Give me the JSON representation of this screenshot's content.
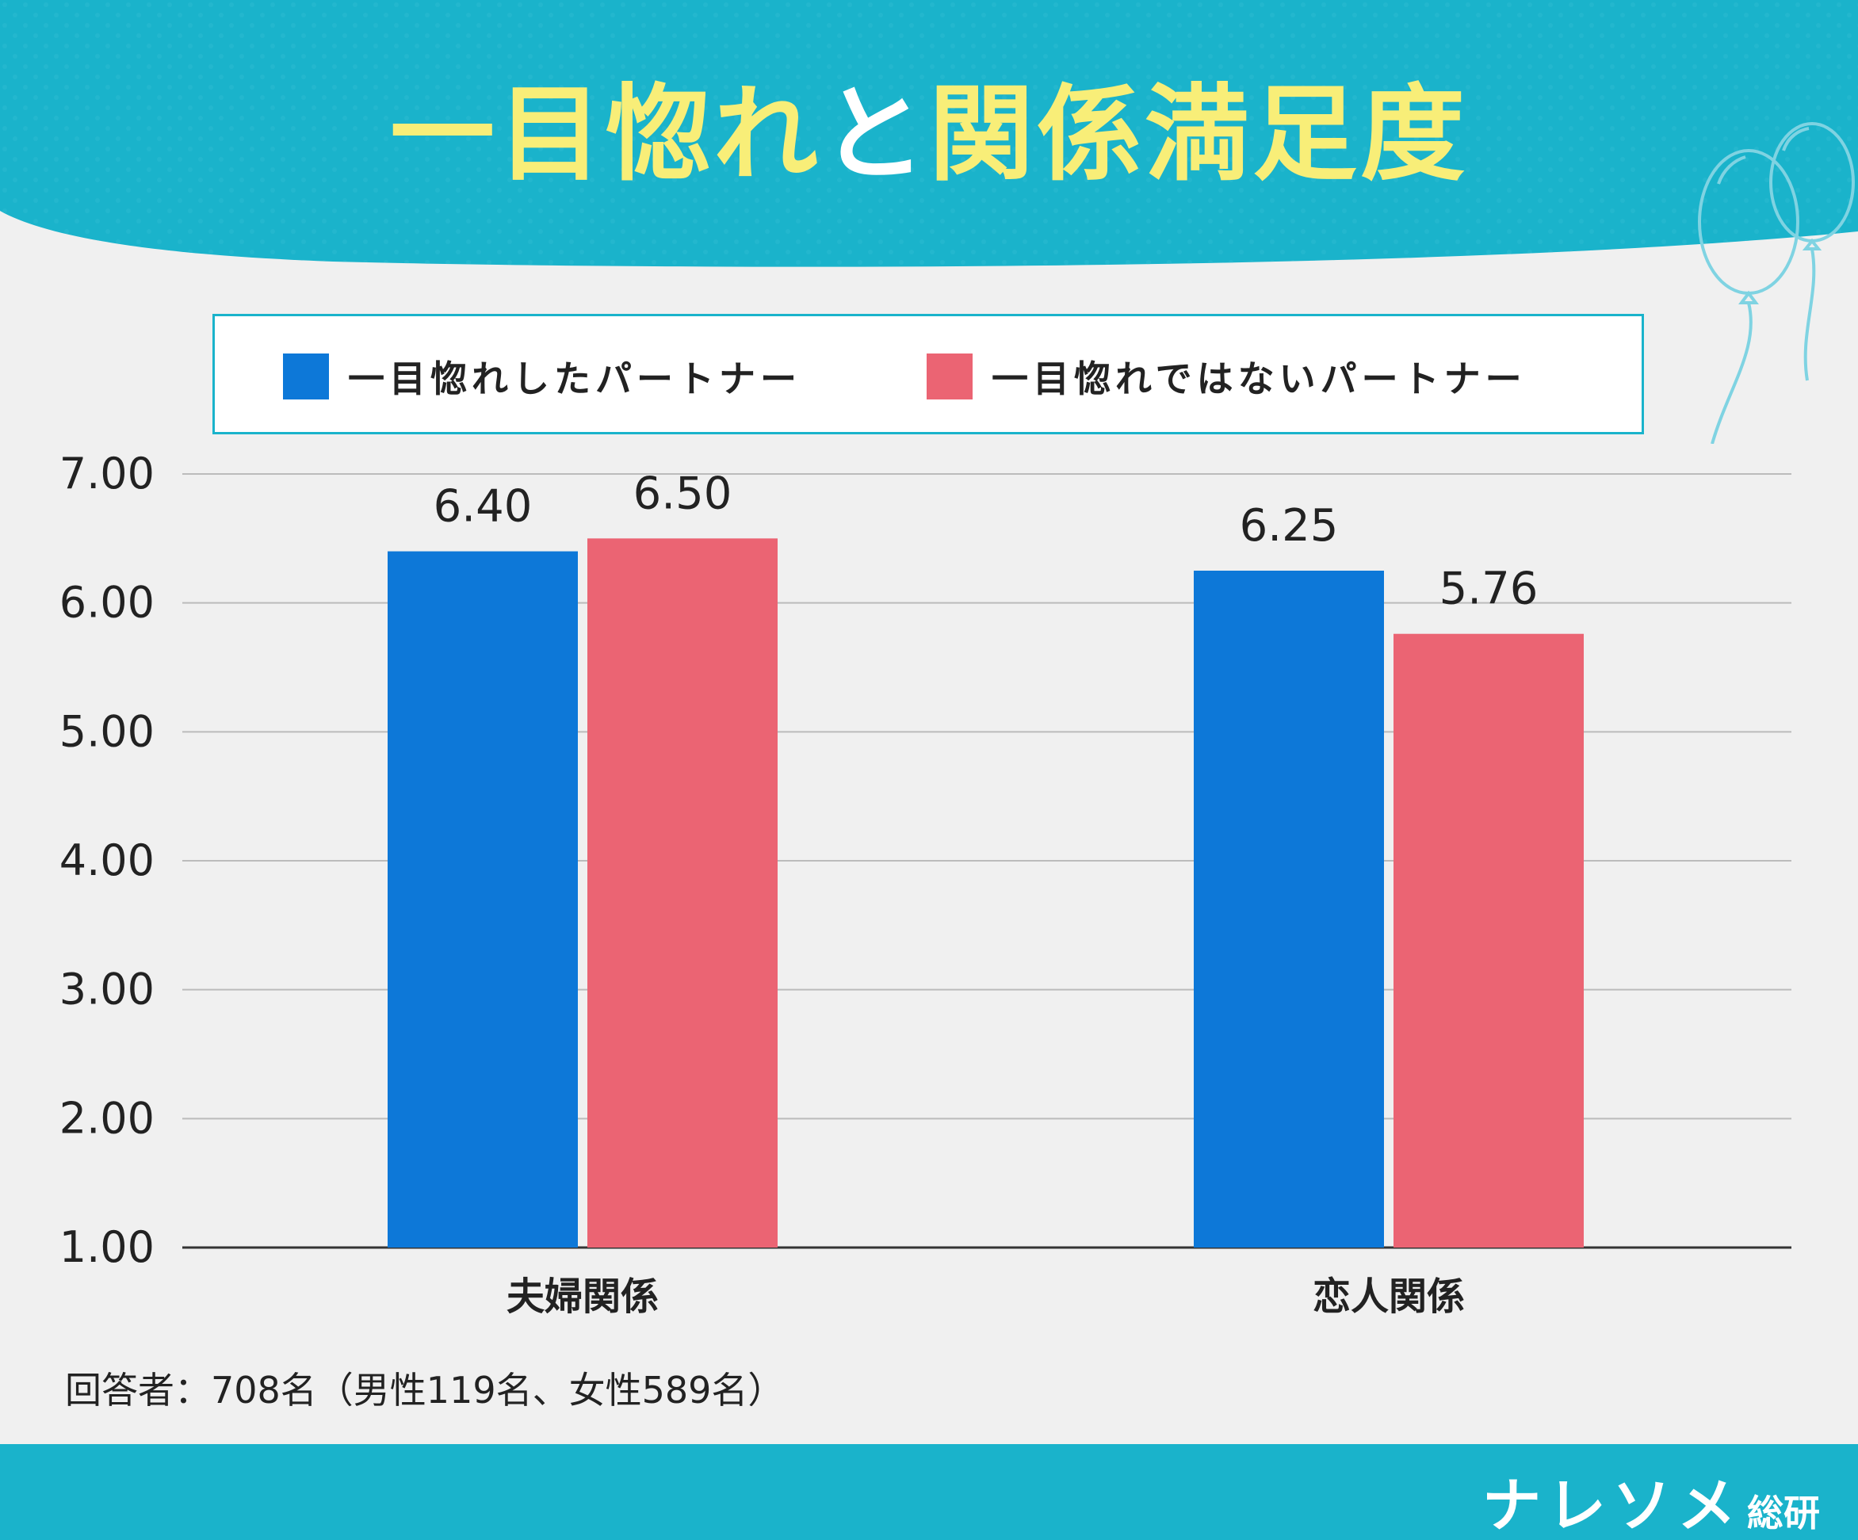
{
  "header": {
    "title_part1": "一目惚れ",
    "title_part2": "と",
    "title_part3": "関係満足度"
  },
  "colors": {
    "teal": "#1ab3cb",
    "title_yellow": "#f8ee78",
    "blue": "#0d78d8",
    "pink": "#eb6473",
    "background": "#f0f0f0",
    "grid": "#bbbbbb"
  },
  "chart_data": {
    "type": "bar",
    "title": "一目惚れと関係満足度",
    "categories": [
      "夫婦関係",
      "恋人関係"
    ],
    "series": [
      {
        "name": "一目惚れしたパートナー",
        "color": "#0d78d8",
        "values": [
          6.4,
          6.25
        ],
        "labels": [
          "6.40",
          "6.25"
        ]
      },
      {
        "name": "一目惚れではないパートナー",
        "color": "#eb6473",
        "values": [
          6.5,
          5.76
        ],
        "labels": [
          "6.50",
          "5.76"
        ]
      }
    ],
    "ylim": [
      1.0,
      7.0
    ],
    "yticks": [
      7.0,
      6.0,
      5.0,
      4.0,
      3.0,
      2.0,
      1.0
    ],
    "ytick_labels": [
      "7.00",
      "6.00",
      "5.00",
      "4.00",
      "3.00",
      "2.00",
      "1.00"
    ],
    "xlabel": "",
    "ylabel": "",
    "grid": true,
    "legend_position": "top"
  },
  "footnote": "回答者：708名（男性119名、女性589名）",
  "brand": {
    "main": "ナレソメ",
    "sub": "総研"
  }
}
